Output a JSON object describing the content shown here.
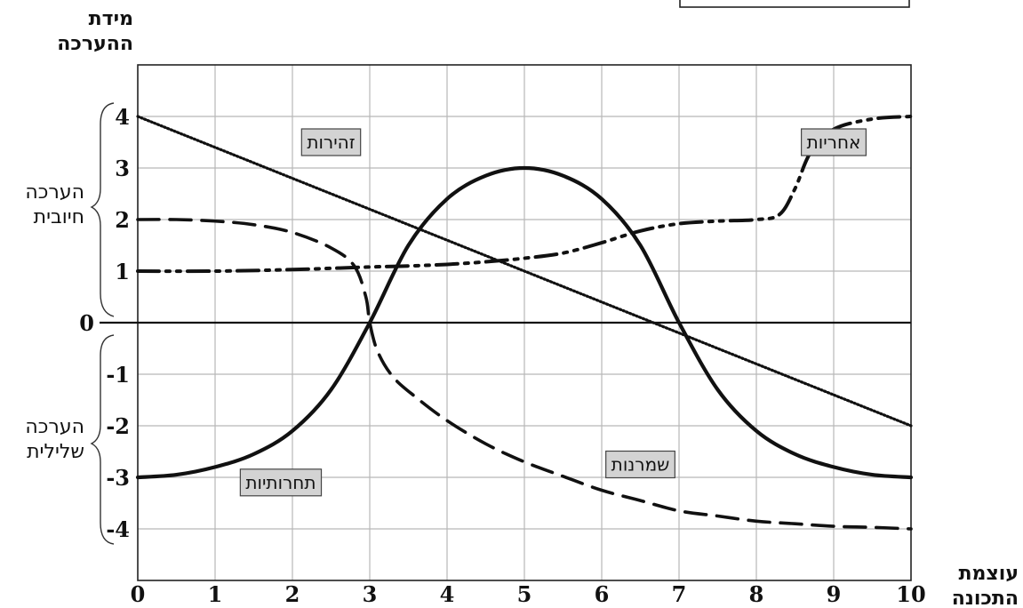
{
  "chart_data": {
    "type": "line",
    "ylabel_lines": [
      "מידת",
      "ההערכה"
    ],
    "xlabel_lines": [
      "עוצמת",
      "התכונה"
    ],
    "x_ticks": [
      "0",
      "1",
      "2",
      "3",
      "4",
      "5",
      "6",
      "7",
      "8",
      "9",
      "10"
    ],
    "y_ticks": [
      "4",
      "3",
      "2",
      "1",
      "0",
      "-1",
      "-2",
      "-3",
      "-4"
    ],
    "xlim": [
      0,
      10
    ],
    "ylim": [
      -5,
      5
    ],
    "grid": true,
    "y_groups": [
      {
        "lines": [
          "הערכה",
          "חיובית"
        ],
        "range": [
          1,
          4
        ]
      },
      {
        "lines": [
          "הערכה",
          "שלילית"
        ],
        "range": [
          -4,
          -1
        ]
      }
    ],
    "series": [
      {
        "name": "זהירות",
        "style": "dotted",
        "x": [
          0,
          10
        ],
        "y": [
          4,
          -2
        ]
      },
      {
        "name": "תחרותיות",
        "style": "solid",
        "x": [
          0,
          0.5,
          1,
          1.5,
          2,
          2.5,
          3,
          3.5,
          4,
          4.5,
          5,
          5.5,
          6,
          6.5,
          7,
          7.5,
          8,
          8.5,
          9,
          9.5,
          10
        ],
        "y": [
          -3,
          -2.95,
          -2.8,
          -2.55,
          -2.1,
          -1.3,
          0,
          1.5,
          2.4,
          2.85,
          3,
          2.85,
          2.4,
          1.5,
          0,
          -1.3,
          -2.1,
          -2.55,
          -2.8,
          -2.95,
          -3
        ]
      },
      {
        "name": "שמרנות",
        "style": "dashed",
        "x": [
          0,
          0.5,
          1,
          1.5,
          2,
          2.5,
          2.8,
          2.95,
          3,
          3.1,
          3.3,
          3.6,
          4,
          4.5,
          5,
          5.5,
          6,
          6.5,
          7,
          7.5,
          8,
          8.5,
          9,
          9.5,
          10
        ],
        "y": [
          2,
          2,
          1.97,
          1.9,
          1.75,
          1.45,
          1.1,
          0.5,
          0,
          -0.55,
          -1.05,
          -1.45,
          -1.9,
          -2.35,
          -2.7,
          -2.98,
          -3.25,
          -3.45,
          -3.65,
          -3.75,
          -3.85,
          -3.9,
          -3.95,
          -3.97,
          -4
        ]
      },
      {
        "name": "אחריות",
        "style": "dash-dot-dot",
        "x": [
          0,
          1,
          2,
          3,
          3.5,
          4,
          4.5,
          5,
          5.5,
          6,
          6.5,
          7,
          7.5,
          8,
          8.3,
          8.5,
          8.7,
          9,
          9.5,
          10
        ],
        "y": [
          1,
          1,
          1.03,
          1.08,
          1.1,
          1.13,
          1.18,
          1.25,
          1.35,
          1.55,
          1.78,
          1.92,
          1.97,
          2,
          2.1,
          2.6,
          3.3,
          3.75,
          3.95,
          4
        ]
      }
    ],
    "tags": [
      "זהירות",
      "אחריות",
      "תחרותיות",
      "שמרנות"
    ]
  }
}
